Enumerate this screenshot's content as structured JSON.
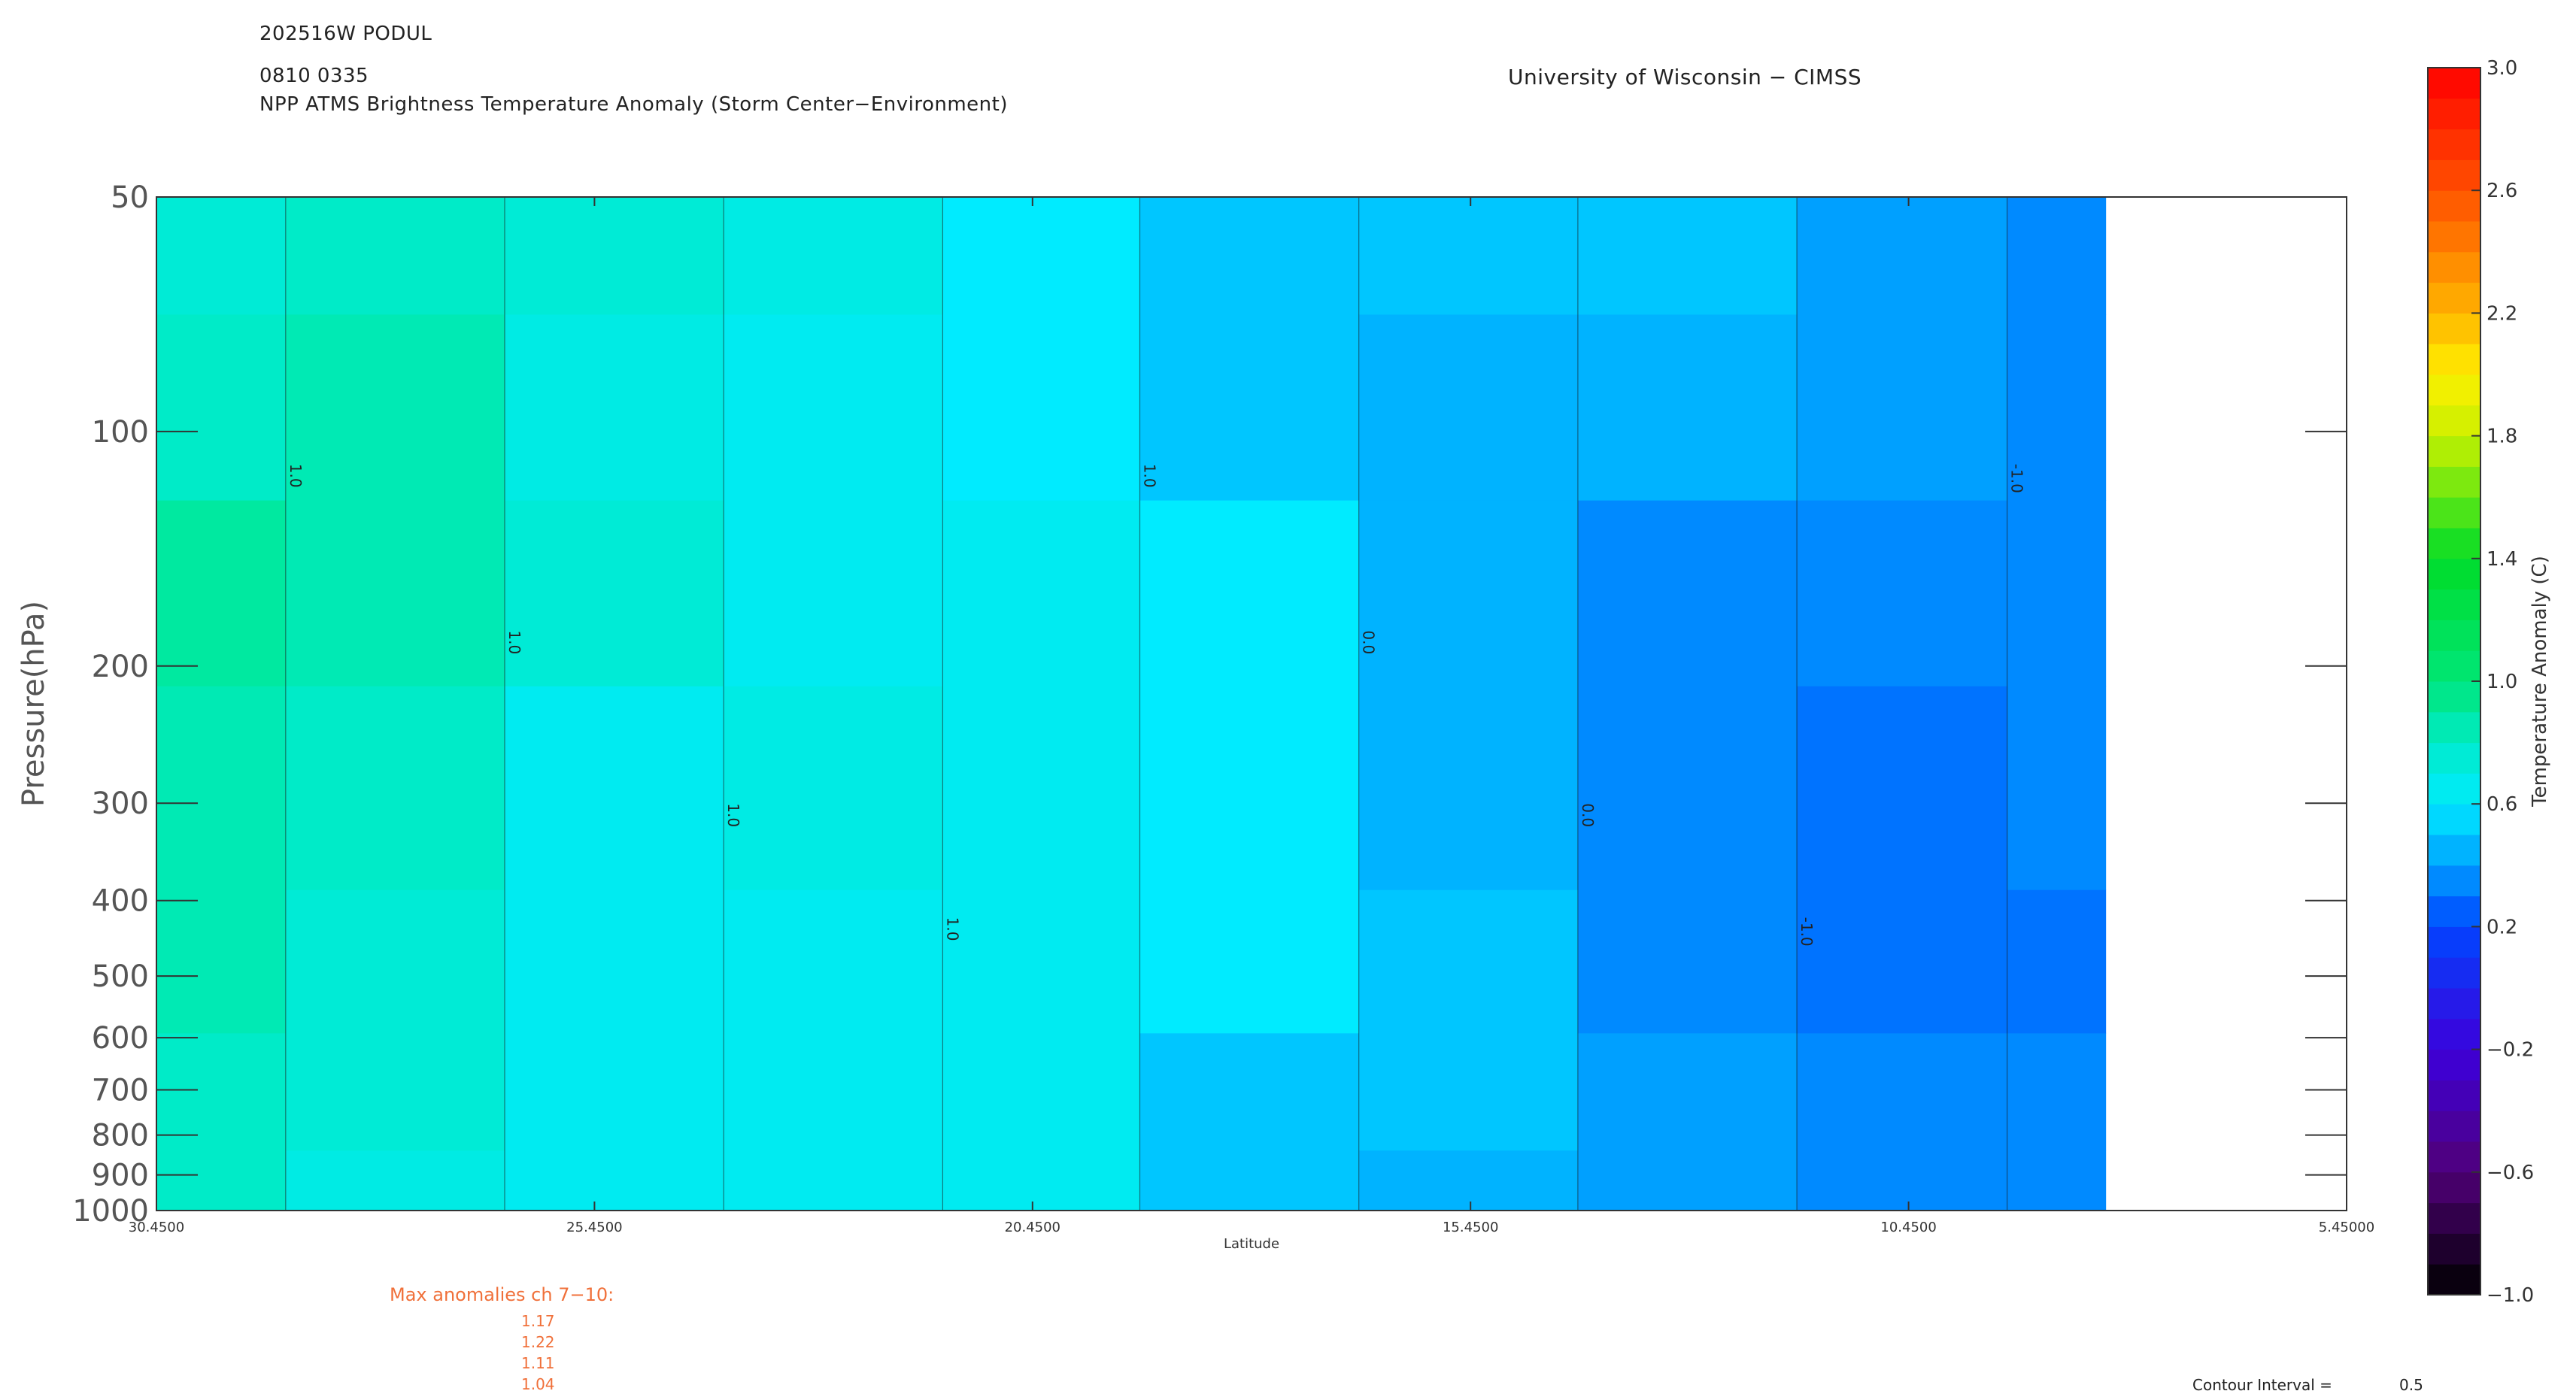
{
  "header": {
    "storm_id": "202516W PODUL",
    "datetime": "0810 0335",
    "subtitle": "NPP ATMS Brightness Temperature Anomaly (Storm Center−Environment)",
    "institution": "University of Wisconsin − CIMSS"
  },
  "chart_data": {
    "type": "heatmap",
    "xlabel": "Latitude",
    "ylabel": "Pressure(hPa)",
    "xlim": [
      30.45,
      5.45
    ],
    "x_ticks": [
      "30.4500",
      "25.4500",
      "20.4500",
      "15.4500",
      "10.4500",
      "5.45000"
    ],
    "y_scale": "log",
    "ylim": [
      1000,
      50
    ],
    "y_ticks": [
      "50",
      "100",
      "200",
      "300",
      "400",
      "500",
      "600",
      "700",
      "800",
      "900",
      "1000"
    ],
    "data_extent_latitude": [
      30.45,
      8.2
    ],
    "colorbar": {
      "label": "Temperature Anomaly (C)",
      "min": -1.0,
      "max": 3.0,
      "ticks": [
        "3.0",
        "2.6",
        "2.2",
        "1.8",
        "1.4",
        "1.0",
        "0.6",
        "0.2",
        "−0.2",
        "−0.6",
        "−1.0"
      ]
    },
    "contour_labels": [
      "1.0",
      "0.0",
      "-1.0"
    ],
    "columns": [
      {
        "lat": 30.45,
        "levels": [
          {
            "p": 1000,
            "v": 0.8
          },
          {
            "p": 700,
            "v": 0.8
          },
          {
            "p": 500,
            "v": 0.85
          },
          {
            "p": 300,
            "v": 0.85
          },
          {
            "p": 150,
            "v": 0.9
          },
          {
            "p": 100,
            "v": 0.8
          },
          {
            "p": 50,
            "v": 0.75
          }
        ]
      },
      {
        "lat": 27.5,
        "levels": [
          {
            "p": 1000,
            "v": 0.7
          },
          {
            "p": 700,
            "v": 0.75
          },
          {
            "p": 500,
            "v": 0.75
          },
          {
            "p": 300,
            "v": 0.8
          },
          {
            "p": 150,
            "v": 0.85
          },
          {
            "p": 100,
            "v": 0.85
          },
          {
            "p": 50,
            "v": 0.8
          }
        ]
      },
      {
        "lat": 25.45,
        "levels": [
          {
            "p": 1000,
            "v": 0.65
          },
          {
            "p": 700,
            "v": 0.65
          },
          {
            "p": 500,
            "v": 0.65
          },
          {
            "p": 300,
            "v": 0.65
          },
          {
            "p": 150,
            "v": 0.75
          },
          {
            "p": 100,
            "v": 0.7
          },
          {
            "p": 50,
            "v": 0.75
          }
        ]
      },
      {
        "lat": 22.5,
        "levels": [
          {
            "p": 1000,
            "v": 0.65
          },
          {
            "p": 700,
            "v": 0.65
          },
          {
            "p": 500,
            "v": 0.65
          },
          {
            "p": 300,
            "v": 0.7
          },
          {
            "p": 150,
            "v": 0.65
          },
          {
            "p": 100,
            "v": 0.65
          },
          {
            "p": 50,
            "v": 0.7
          }
        ]
      },
      {
        "lat": 20.45,
        "levels": [
          {
            "p": 1000,
            "v": 0.65
          },
          {
            "p": 700,
            "v": 0.65
          },
          {
            "p": 500,
            "v": 0.65
          },
          {
            "p": 300,
            "v": 0.65
          },
          {
            "p": 150,
            "v": 0.65
          },
          {
            "p": 100,
            "v": 0.6
          },
          {
            "p": 50,
            "v": 0.6
          }
        ]
      },
      {
        "lat": 18.0,
        "levels": [
          {
            "p": 1000,
            "v": 0.5
          },
          {
            "p": 700,
            "v": 0.5
          },
          {
            "p": 500,
            "v": 0.6
          },
          {
            "p": 300,
            "v": 0.6
          },
          {
            "p": 150,
            "v": 0.6
          },
          {
            "p": 100,
            "v": 0.5
          },
          {
            "p": 50,
            "v": 0.5
          }
        ]
      },
      {
        "lat": 15.45,
        "levels": [
          {
            "p": 1000,
            "v": 0.45
          },
          {
            "p": 700,
            "v": 0.5
          },
          {
            "p": 500,
            "v": 0.5
          },
          {
            "p": 300,
            "v": 0.45
          },
          {
            "p": 150,
            "v": 0.45
          },
          {
            "p": 100,
            "v": 0.45
          },
          {
            "p": 50,
            "v": 0.5
          }
        ]
      },
      {
        "lat": 13.0,
        "levels": [
          {
            "p": 1000,
            "v": 0.4
          },
          {
            "p": 700,
            "v": 0.4
          },
          {
            "p": 500,
            "v": 0.35
          },
          {
            "p": 300,
            "v": 0.35
          },
          {
            "p": 150,
            "v": 0.35
          },
          {
            "p": 100,
            "v": 0.45
          },
          {
            "p": 50,
            "v": 0.5
          }
        ]
      },
      {
        "lat": 10.45,
        "levels": [
          {
            "p": 1000,
            "v": 0.35
          },
          {
            "p": 700,
            "v": 0.35
          },
          {
            "p": 500,
            "v": 0.3
          },
          {
            "p": 300,
            "v": 0.3
          },
          {
            "p": 150,
            "v": 0.35
          },
          {
            "p": 100,
            "v": 0.4
          },
          {
            "p": 50,
            "v": 0.4
          }
        ]
      },
      {
        "lat": 8.2,
        "levels": [
          {
            "p": 1000,
            "v": 0.35
          },
          {
            "p": 700,
            "v": 0.35
          },
          {
            "p": 500,
            "v": 0.3
          },
          {
            "p": 300,
            "v": 0.35
          },
          {
            "p": 150,
            "v": 0.35
          },
          {
            "p": 100,
            "v": 0.35
          },
          {
            "p": 50,
            "v": 0.35
          }
        ]
      }
    ]
  },
  "annotations": {
    "max_title": "Max anomalies ch 7−10:",
    "max_values": [
      "1.17",
      "1.22",
      "1.11",
      "1.04"
    ],
    "contour_interval_label": "Contour Interval =",
    "contour_interval_value": "0.5"
  }
}
